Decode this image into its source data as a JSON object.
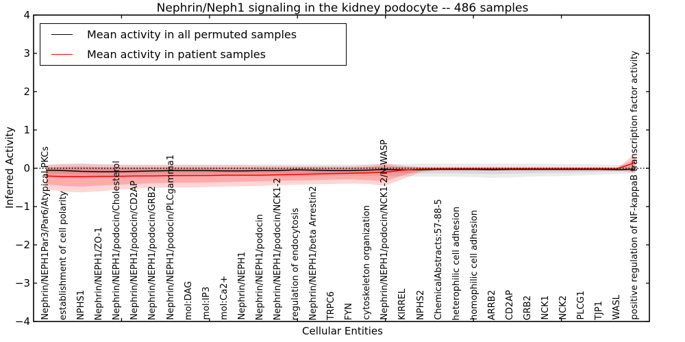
{
  "figure": {
    "title": "Nephrin/Neph1 signaling in the kidney podocyte -- 486 samples"
  },
  "chart_data": {
    "type": "line",
    "title": "Nephrin/Neph1 signaling in the kidney podocyte -- 486 samples",
    "xlabel": "Cellular Entities",
    "ylabel": "Inferred Activity",
    "ylim": [
      -4,
      4
    ],
    "yticks": [
      -4,
      -3,
      -2,
      -1,
      0,
      1,
      2,
      3,
      4
    ],
    "yticklabels": [
      "−4",
      "−3",
      "−2",
      "−1",
      "0",
      "1",
      "2",
      "3",
      "4"
    ],
    "x_axis_range": [
      0,
      35
    ],
    "xtick_positions": [
      5,
      10,
      15,
      20,
      25,
      30
    ],
    "grid": false,
    "zero_line": {
      "y": 0,
      "style": "dotted",
      "color": "#000000"
    },
    "legend": {
      "position": "upper-left",
      "entries": [
        {
          "label": "Mean activity in all permuted samples",
          "color": "#000000"
        },
        {
          "label": "Mean activity in patient samples",
          "color": "#ff0000"
        }
      ]
    },
    "categories": [
      "Nephrin/NEPH1Par3/Par6/Atypical PKCs",
      "establishment of cell polarity",
      "NPHS1",
      "Nephrin/NEPH1/ZO-1",
      "Nephrin/NEPH1/podocin/Cholesterol",
      "Nephrin/NEPH1/podocin/CD2AP",
      "Nephrin/NEPH1/podocin/GRB2",
      "Nephrin/NEPH1/podocin/PLCgamma1",
      "mol:DAG",
      "mol:IP3",
      "mol:Ca2+",
      "Nephrin/NEPH1",
      "Nephrin/NEPH1/podocin",
      "Nephrin/NEPH1/podocin/NCK1-2",
      "regulation of endocytosis",
      "Nephrin/NEPH1/beta Arrestin2",
      "TRPC6",
      "FYN",
      "cytoskeleton organization",
      "Nephrin/NEPH1/podocin/NCK1-2/N-WASP",
      "KIRREL",
      "NPHS2",
      "ChemicalAbstracts:57-88-5",
      "heterophilic cell adhesion",
      "homophilic cell adhesion",
      "ARRB2",
      "CD2AP",
      "GRB2",
      "NCK1",
      "NCK2",
      "PLCG1",
      "TJP1",
      "WASL",
      "positive regulation of NF-kappaB transcription factor activity"
    ],
    "series": [
      {
        "name": "Mean activity in all permuted samples",
        "color": "#000000",
        "width": 1.5,
        "values": [
          -0.05,
          -0.06,
          -0.08,
          -0.09,
          -0.09,
          -0.08,
          -0.07,
          -0.06,
          -0.06,
          -0.06,
          -0.07,
          -0.07,
          -0.06,
          -0.06,
          -0.04,
          -0.05,
          -0.06,
          -0.06,
          -0.05,
          -0.03,
          -0.04,
          -0.04,
          -0.03,
          -0.03,
          -0.03,
          -0.04,
          -0.03,
          -0.03,
          -0.03,
          -0.03,
          -0.03,
          -0.03,
          -0.04,
          -0.02
        ]
      },
      {
        "name": "Mean activity in patient samples",
        "color": "#ff0000",
        "width": 1.5,
        "values": [
          -0.2,
          -0.22,
          -0.22,
          -0.21,
          -0.21,
          -0.2,
          -0.2,
          -0.19,
          -0.19,
          -0.19,
          -0.18,
          -0.18,
          -0.18,
          -0.17,
          -0.16,
          -0.15,
          -0.14,
          -0.13,
          -0.12,
          -0.1,
          -0.05,
          -0.02,
          -0.01,
          -0.01,
          -0.01,
          -0.01,
          -0.01,
          -0.01,
          -0.01,
          -0.01,
          -0.01,
          -0.01,
          -0.01,
          0.15
        ]
      }
    ],
    "bands": [
      {
        "name": "permuted-outer-band",
        "color": "#000000",
        "opacity": 0.08,
        "upper": [
          0.1,
          0.11,
          0.12,
          0.11,
          0.1,
          0.1,
          0.1,
          0.1,
          0.1,
          0.1,
          0.1,
          0.1,
          0.1,
          0.1,
          0.1,
          0.1,
          0.1,
          0.1,
          0.1,
          0.11,
          0.11,
          0.12,
          0.12,
          0.12,
          0.12,
          0.12,
          0.12,
          0.12,
          0.12,
          0.11,
          0.11,
          0.1,
          0.09,
          0.08
        ],
        "lower": [
          -0.22,
          -0.24,
          -0.26,
          -0.25,
          -0.24,
          -0.23,
          -0.22,
          -0.22,
          -0.21,
          -0.21,
          -0.21,
          -0.21,
          -0.21,
          -0.21,
          -0.2,
          -0.2,
          -0.2,
          -0.2,
          -0.2,
          -0.2,
          -0.21,
          -0.22,
          -0.22,
          -0.22,
          -0.23,
          -0.25,
          -0.24,
          -0.22,
          -0.21,
          -0.2,
          -0.19,
          -0.17,
          -0.15,
          -0.12
        ]
      },
      {
        "name": "permuted-inner-band",
        "color": "#000000",
        "opacity": 0.08,
        "upper": [
          0.02,
          0.02,
          0.02,
          0.02,
          0.02,
          0.02,
          0.02,
          0.02,
          0.02,
          0.02,
          0.02,
          0.02,
          0.02,
          0.02,
          0.03,
          0.03,
          0.02,
          0.02,
          0.03,
          0.04,
          0.04,
          0.04,
          0.04,
          0.04,
          0.04,
          0.04,
          0.04,
          0.04,
          0.04,
          0.04,
          0.03,
          0.03,
          0.02,
          0.02
        ],
        "lower": [
          -0.13,
          -0.14,
          -0.15,
          -0.15,
          -0.14,
          -0.14,
          -0.13,
          -0.13,
          -0.13,
          -0.13,
          -0.13,
          -0.13,
          -0.13,
          -0.13,
          -0.12,
          -0.12,
          -0.12,
          -0.12,
          -0.12,
          -0.12,
          -0.13,
          -0.13,
          -0.13,
          -0.13,
          -0.14,
          -0.15,
          -0.14,
          -0.13,
          -0.12,
          -0.12,
          -0.11,
          -0.1,
          -0.09,
          -0.07
        ]
      },
      {
        "name": "patient-outer-band",
        "color": "#ff0000",
        "opacity": 0.16,
        "upper": [
          0.08,
          0.11,
          0.12,
          0.1,
          0.09,
          0.08,
          0.08,
          0.08,
          0.08,
          0.08,
          0.08,
          0.08,
          0.07,
          0.07,
          0.06,
          0.06,
          0.06,
          0.06,
          0.08,
          0.13,
          0.07,
          0.03,
          0.02,
          0.02,
          0.02,
          0.02,
          0.02,
          0.02,
          0.02,
          0.02,
          0.02,
          0.02,
          0.02,
          0.38
        ],
        "lower": [
          -0.55,
          -0.61,
          -0.63,
          -0.6,
          -0.56,
          -0.53,
          -0.51,
          -0.5,
          -0.5,
          -0.49,
          -0.48,
          -0.47,
          -0.46,
          -0.44,
          -0.43,
          -0.42,
          -0.41,
          -0.4,
          -0.41,
          -0.46,
          -0.28,
          -0.1,
          -0.05,
          -0.05,
          -0.05,
          -0.05,
          -0.05,
          -0.05,
          -0.05,
          -0.05,
          -0.05,
          -0.05,
          -0.05,
          -0.13
        ]
      },
      {
        "name": "patient-inner-band",
        "color": "#ff0000",
        "opacity": 0.2,
        "upper": [
          0.02,
          0.04,
          0.05,
          0.03,
          0.02,
          0.02,
          0.02,
          0.02,
          0.02,
          0.02,
          0.02,
          0.02,
          0.02,
          0.01,
          0.01,
          0.01,
          0.01,
          0.01,
          0.03,
          0.08,
          0.03,
          0.01,
          0.01,
          0.01,
          0.01,
          0.01,
          0.01,
          0.01,
          0.01,
          0.01,
          0.01,
          0.01,
          0.01,
          0.26
        ],
        "lower": [
          -0.42,
          -0.46,
          -0.48,
          -0.45,
          -0.43,
          -0.41,
          -0.39,
          -0.38,
          -0.38,
          -0.37,
          -0.36,
          -0.35,
          -0.34,
          -0.33,
          -0.32,
          -0.31,
          -0.3,
          -0.29,
          -0.31,
          -0.34,
          -0.18,
          -0.06,
          -0.03,
          -0.03,
          -0.03,
          -0.03,
          -0.03,
          -0.03,
          -0.03,
          -0.03,
          -0.03,
          -0.03,
          -0.03,
          -0.06
        ]
      }
    ]
  }
}
